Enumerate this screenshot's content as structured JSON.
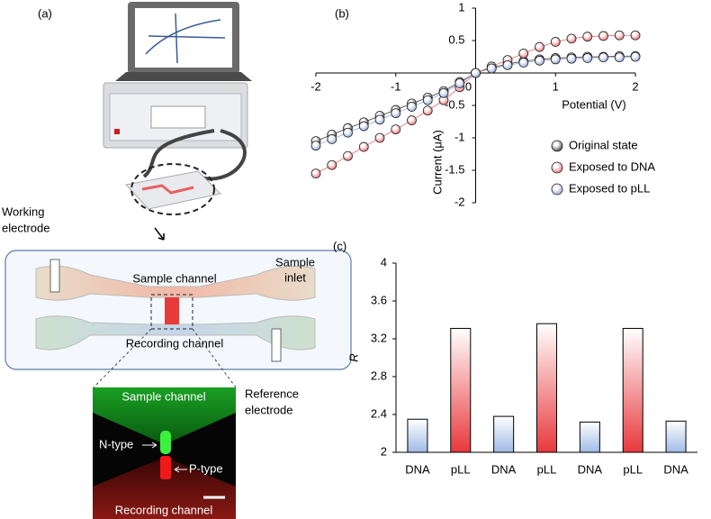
{
  "illustration": {
    "panel_label": "(a)",
    "working_electrode": [
      "Working",
      "electrode"
    ],
    "sample_inlet": [
      "Sample",
      "inlet"
    ],
    "sample_channel": "Sample channel",
    "recording_channel": "Recording channel",
    "reference_electrode": [
      "Reference",
      "electrode"
    ],
    "image_sample_channel": "Sample channel",
    "n_type": "N-type",
    "p_type": "P-type",
    "image_recording_channel": "Recording channel"
  },
  "chart_data": [
    {
      "type": "line",
      "panel_label": "(b)",
      "x_label": "Potential (V)",
      "y_label": "Current (μA)",
      "x": [
        -2,
        -1.8,
        -1.6,
        -1.4,
        -1.2,
        -1,
        -0.8,
        -0.6,
        -0.4,
        -0.2,
        0,
        0.2,
        0.4,
        0.6,
        0.8,
        1,
        1.2,
        1.4,
        1.6,
        1.8,
        2
      ],
      "series": [
        {
          "name": "Original state",
          "color": "#3a3a3a",
          "values": [
            -1.05,
            -0.95,
            -0.85,
            -0.76,
            -0.66,
            -0.57,
            -0.47,
            -0.38,
            -0.28,
            -0.14,
            0,
            0.08,
            0.14,
            0.18,
            0.21,
            0.23,
            0.24,
            0.25,
            0.25,
            0.26,
            0.26
          ]
        },
        {
          "name": "Exposed to DNA",
          "color": "#e8686a",
          "values": [
            -1.55,
            -1.42,
            -1.28,
            -1.14,
            -1.0,
            -0.87,
            -0.73,
            -0.58,
            -0.42,
            -0.22,
            0,
            0.1,
            0.2,
            0.3,
            0.4,
            0.48,
            0.53,
            0.56,
            0.57,
            0.58,
            0.58
          ]
        },
        {
          "name": "Exposed to pLL",
          "color": "#8ea6d8",
          "values": [
            -1.12,
            -1.02,
            -0.92,
            -0.82,
            -0.72,
            -0.62,
            -0.52,
            -0.42,
            -0.31,
            -0.16,
            0,
            0.07,
            0.12,
            0.16,
            0.19,
            0.21,
            0.22,
            0.23,
            0.24,
            0.24,
            0.25
          ]
        }
      ],
      "xlim": [
        -2,
        2
      ],
      "xticks": [
        -2,
        -1,
        0,
        1,
        2
      ],
      "ylim": [
        -2,
        1
      ],
      "yticks": [
        -2,
        -1.5,
        -1,
        -0.5,
        0,
        0.5,
        1
      ]
    },
    {
      "type": "bar",
      "panel_label": "(c)",
      "y_label": "R",
      "categories": [
        "DNA",
        "pLL",
        "DNA",
        "pLL",
        "DNA",
        "pLL",
        "DNA"
      ],
      "values": [
        2.35,
        3.31,
        2.38,
        3.36,
        2.32,
        3.31,
        2.33
      ],
      "colors": [
        "#9fbbe6",
        "#e8383c",
        "#9fbbe6",
        "#e8383c",
        "#9fbbe6",
        "#e8383c",
        "#9fbbe6"
      ],
      "ylim": [
        2,
        4
      ],
      "yticks": [
        2,
        2.4,
        2.8,
        3.2,
        3.6,
        4
      ]
    }
  ]
}
